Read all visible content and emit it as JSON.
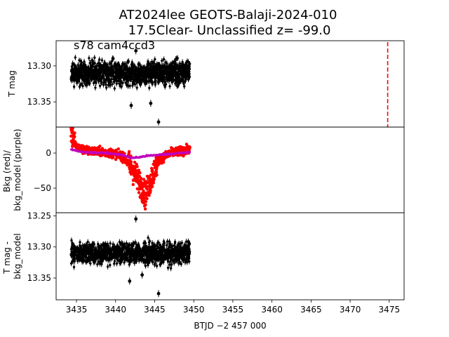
{
  "chart_data": {
    "type": "scatter",
    "title_line1": "AT2024lee  GEOTS-Balaji-2024-010",
    "title_line2": "17.5Clear- Unclassified z= -99.0",
    "annotation": "s78 cam4ccd3",
    "xlabel": "BTJD −2 457 000",
    "xlim": [
      3432.4,
      3476.9
    ],
    "x_ticks": [
      "3435",
      "3440",
      "3445",
      "3450",
      "3455",
      "3460",
      "3465",
      "3470",
      "3475"
    ],
    "colors": {
      "flux": "#000000",
      "bkg": "#ff0000",
      "bkg_model": "#bf00bf",
      "marker_line": "#ff0000"
    },
    "panels": [
      {
        "name": "top",
        "ylabel": "T mag",
        "ylim": [
          13.265,
          13.385
        ],
        "y_inverted": true,
        "y_ticks": [
          "13.30",
          "13.35"
        ],
        "series": [
          {
            "label": "T mag",
            "color": "#000000",
            "x_range": [
              3434.3,
              3449.5
            ],
            "center": 13.31,
            "spread": 0.015,
            "outliers": [
              {
                "x": 3442.6,
                "y": 13.279
              },
              {
                "x": 3442.0,
                "y": 13.355
              },
              {
                "x": 3444.5,
                "y": 13.352
              },
              {
                "x": 3445.5,
                "y": 13.378
              }
            ]
          }
        ],
        "vline": {
          "x": 3474.8,
          "style": "dashed"
        }
      },
      {
        "name": "middle",
        "ylabel": "Bkg (red)/ bkg_model (purple)",
        "ylim": [
          -85,
          37
        ],
        "y_ticks": [
          "0",
          "−50"
        ],
        "series": [
          {
            "label": "Bkg",
            "color": "#ff0000",
            "x_range": [
              3434.3,
              3449.5
            ],
            "profile": [
              [
                3434.3,
                30
              ],
              [
                3435.0,
                8
              ],
              [
                3436.5,
                3
              ],
              [
                3438.0,
                2
              ],
              [
                3440.0,
                -1
              ],
              [
                3441.0,
                -6
              ],
              [
                3442.0,
                -20
              ],
              [
                3443.0,
                -40
              ],
              [
                3443.8,
                -60
              ],
              [
                3444.6,
                -35
              ],
              [
                3445.5,
                -10
              ],
              [
                3447.0,
                0
              ],
              [
                3449.5,
                5
              ]
            ]
          },
          {
            "label": "bkg_model",
            "color": "#bf00bf",
            "x_range": [
              3434.3,
              3449.5
            ],
            "profile": [
              [
                3434.3,
                5
              ],
              [
                3436.0,
                1
              ],
              [
                3439.0,
                0
              ],
              [
                3441.0,
                -3
              ],
              [
                3442.0,
                -7
              ],
              [
                3443.0,
                -6
              ],
              [
                3444.0,
                -4
              ],
              [
                3446.0,
                -2
              ],
              [
                3449.5,
                1
              ]
            ]
          }
        ]
      },
      {
        "name": "bottom",
        "ylabel": "T mag - bkg_model",
        "ylim": [
          13.245,
          13.385
        ],
        "y_inverted": true,
        "y_ticks": [
          "13.25",
          "13.30",
          "13.35"
        ],
        "series": [
          {
            "label": "T mag - bkg_model",
            "color": "#000000",
            "x_range": [
              3434.3,
              3449.5
            ],
            "center": 13.31,
            "spread": 0.015,
            "outliers": [
              {
                "x": 3442.6,
                "y": 13.255
              },
              {
                "x": 3441.8,
                "y": 13.355
              },
              {
                "x": 3443.4,
                "y": 13.345
              },
              {
                "x": 3445.5,
                "y": 13.375
              }
            ]
          }
        ]
      }
    ]
  }
}
